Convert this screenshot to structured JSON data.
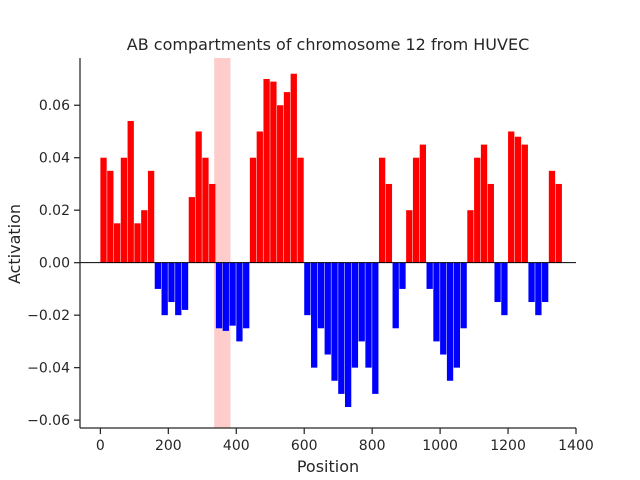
{
  "chart_data": {
    "type": "area",
    "title": "AB compartments of chromosome 12 from HUVEC",
    "xlabel": "Position",
    "ylabel": "Activation",
    "xlim": [
      -60,
      1400
    ],
    "ylim": [
      -0.063,
      0.078
    ],
    "xticks": [
      0,
      200,
      400,
      600,
      800,
      1000,
      1200,
      1400
    ],
    "xtick_labels": [
      "0",
      "200",
      "400",
      "600",
      "800",
      "1000",
      "1200",
      "1400"
    ],
    "yticks": [
      -0.06,
      -0.04,
      -0.02,
      0.0,
      0.02,
      0.04,
      0.06
    ],
    "ytick_labels": [
      "−0.06",
      "−0.04",
      "−0.02",
      "0.00",
      "0.02",
      "0.04",
      "0.06"
    ],
    "grid": false,
    "zero_line": true,
    "highlight_region": {
      "x_start": 335,
      "x_end": 383,
      "color": "#ffcccc"
    },
    "positive_color": "#ff0000",
    "negative_color": "#0000ff",
    "series": [
      {
        "x": [
          0,
          20,
          40,
          60,
          80,
          100,
          120,
          140,
          160,
          180,
          200,
          220,
          240,
          260,
          280,
          300,
          320,
          340,
          360,
          380,
          400,
          420,
          440,
          460,
          480,
          500,
          520,
          540,
          560,
          580,
          600,
          620,
          640,
          660,
          680,
          700,
          720,
          740,
          760,
          780,
          800,
          820,
          840,
          860,
          880,
          900,
          920,
          940,
          960,
          980,
          1000,
          1020,
          1040,
          1060,
          1080,
          1100,
          1120,
          1140,
          1160,
          1180,
          1200,
          1220,
          1240,
          1260,
          1280,
          1300,
          1320,
          1340
        ],
        "values": [
          0.04,
          0.035,
          0.015,
          0.04,
          0.054,
          0.015,
          0.02,
          0.035,
          -0.01,
          -0.02,
          -0.015,
          -0.02,
          -0.018,
          0.025,
          0.05,
          0.04,
          0.03,
          -0.025,
          -0.026,
          -0.024,
          -0.03,
          -0.025,
          0.04,
          0.05,
          0.07,
          0.069,
          0.06,
          0.065,
          0.072,
          0.04,
          -0.02,
          -0.04,
          -0.025,
          -0.035,
          -0.045,
          -0.05,
          -0.055,
          -0.04,
          -0.03,
          -0.04,
          -0.05,
          0.04,
          0.03,
          -0.025,
          -0.01,
          0.02,
          0.04,
          0.045,
          -0.01,
          -0.03,
          -0.035,
          -0.045,
          -0.04,
          -0.025,
          0.02,
          0.04,
          0.045,
          0.03,
          -0.015,
          -0.02,
          0.05,
          0.048,
          0.045,
          -0.015,
          -0.02,
          -0.015,
          0.035,
          0.03
        ]
      }
    ]
  }
}
